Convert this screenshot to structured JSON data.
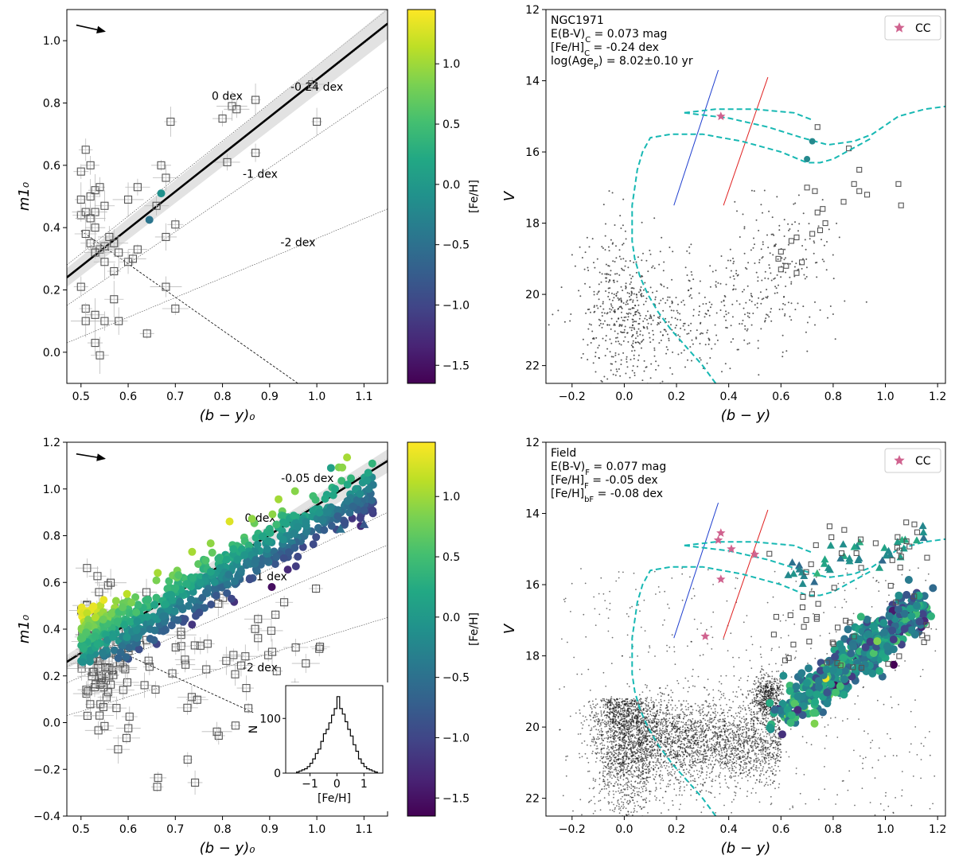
{
  "colors": {
    "iso": "#17b8b3",
    "cepheid": "#d0638f",
    "locus_blue": "#1f3fcf",
    "locus_red": "#e02020",
    "square": "#555555",
    "cmap": [
      "#440154",
      "#482475",
      "#414487",
      "#355f8d",
      "#2a788e",
      "#21918c",
      "#22a884",
      "#44bf70",
      "#7ad151",
      "#bddf26",
      "#fde725"
    ]
  },
  "icons": {
    "reddening": "arrow-icon"
  },
  "chart_data": [
    {
      "id": "tl",
      "type": "scatter",
      "xlabel": "(b − y)₀",
      "ylabel": "m1₀",
      "xlim": [
        0.47,
        1.15
      ],
      "ylim": [
        -0.1,
        1.1
      ],
      "xticks": [
        "0.5",
        "0.6",
        "0.7",
        "0.8",
        "0.9",
        "1.0",
        "1.1"
      ],
      "yticks": [
        "0.0",
        "0.2",
        "0.4",
        "0.6",
        "0.8",
        "1.0"
      ],
      "iso_lines": [
        {
          "label": "0 dex",
          "x": [
            0.47,
            1.15
          ],
          "y": [
            0.28,
            1.1
          ]
        },
        {
          "label": "-0.24 dex",
          "x": [
            0.47,
            1.15
          ],
          "y": [
            0.24,
            1.05
          ]
        },
        {
          "label": "-1 dex",
          "x": [
            0.47,
            1.15
          ],
          "y": [
            0.15,
            0.85
          ]
        },
        {
          "label": "-2 dex",
          "x": [
            0.47,
            1.15
          ],
          "y": [
            0.03,
            0.46
          ]
        }
      ],
      "fit_line": {
        "x": [
          0.47,
          1.15
        ],
        "y": [
          0.24,
          1.055
        ]
      },
      "cut_line": {
        "x": [
          0.5,
          0.96
        ],
        "y": [
          0.39,
          -0.1
        ]
      },
      "labels": [
        {
          "text": "0 dex",
          "x": 0.81,
          "y": 0.81
        },
        {
          "text": "-0.24 dex",
          "x": 1.0,
          "y": 0.84
        },
        {
          "text": "-1 dex",
          "x": 0.88,
          "y": 0.56
        },
        {
          "text": "-2 dex",
          "x": 0.96,
          "y": 0.34
        }
      ],
      "colored_points": [
        {
          "x": 0.67,
          "y": 0.51,
          "feh": -0.1
        },
        {
          "x": 0.645,
          "y": 0.425,
          "feh": -0.45
        }
      ],
      "squares": [
        [
          0.5,
          0.58
        ],
        [
          0.51,
          0.65
        ],
        [
          0.52,
          0.6
        ],
        [
          0.52,
          0.5
        ],
        [
          0.53,
          0.52
        ],
        [
          0.5,
          0.44
        ],
        [
          0.5,
          0.49
        ],
        [
          0.51,
          0.45
        ],
        [
          0.52,
          0.43
        ],
        [
          0.53,
          0.45
        ],
        [
          0.54,
          0.53
        ],
        [
          0.55,
          0.47
        ],
        [
          0.53,
          0.4
        ],
        [
          0.51,
          0.38
        ],
        [
          0.52,
          0.35
        ],
        [
          0.54,
          0.33
        ],
        [
          0.53,
          0.32
        ],
        [
          0.55,
          0.34
        ],
        [
          0.56,
          0.37
        ],
        [
          0.57,
          0.35
        ],
        [
          0.58,
          0.32
        ],
        [
          0.6,
          0.29
        ],
        [
          0.61,
          0.3
        ],
        [
          0.62,
          0.33
        ],
        [
          0.55,
          0.29
        ],
        [
          0.57,
          0.26
        ],
        [
          0.6,
          0.49
        ],
        [
          0.62,
          0.53
        ],
        [
          0.66,
          0.47
        ],
        [
          0.67,
          0.6
        ],
        [
          0.68,
          0.56
        ],
        [
          0.69,
          0.74
        ],
        [
          0.7,
          0.41
        ],
        [
          0.68,
          0.37
        ],
        [
          0.8,
          0.75
        ],
        [
          0.82,
          0.79
        ],
        [
          0.83,
          0.78
        ],
        [
          0.87,
          0.81
        ],
        [
          0.81,
          0.61
        ],
        [
          0.87,
          0.64
        ],
        [
          0.99,
          0.86
        ],
        [
          1.0,
          0.74
        ],
        [
          0.5,
          0.21
        ],
        [
          0.51,
          0.14
        ],
        [
          0.51,
          0.1
        ],
        [
          0.53,
          0.12
        ],
        [
          0.55,
          0.1
        ],
        [
          0.57,
          0.17
        ],
        [
          0.53,
          0.03
        ],
        [
          0.54,
          -0.01
        ],
        [
          0.58,
          0.1
        ],
        [
          0.64,
          0.06
        ],
        [
          0.68,
          0.21
        ],
        [
          0.7,
          0.14
        ]
      ],
      "arrow": {
        "x1": 0.49,
        "y1": 1.05,
        "x2": 0.55,
        "y2": 1.03
      },
      "text_block": []
    },
    {
      "id": "tr",
      "type": "scatter",
      "xlabel": "(b − y)",
      "ylabel": "V",
      "xlim": [
        -0.3,
        1.23
      ],
      "ylim": [
        22.5,
        12
      ],
      "xticks": [
        "−0.2",
        "0.0",
        "0.2",
        "0.4",
        "0.6",
        "0.8",
        "1.0",
        "1.2"
      ],
      "yticks": [
        "12",
        "14",
        "16",
        "18",
        "20",
        "22"
      ],
      "text_block": [
        "NGC1971",
        "E(B-V)_C = 0.073 mag",
        "[Fe/H]_C = -0.24 dex",
        "log(Age_P) = 8.02±0.10 yr"
      ],
      "legend": "CC",
      "cepheids": [
        [
          0.37,
          15.0
        ]
      ],
      "colored_points": [
        {
          "x": 0.72,
          "y": 15.7,
          "feh": -0.2
        },
        {
          "x": 0.7,
          "y": 16.2,
          "feh": -0.2
        }
      ],
      "squares": [
        [
          0.74,
          15.3
        ],
        [
          0.86,
          15.9
        ],
        [
          0.9,
          16.5
        ],
        [
          0.88,
          16.9
        ],
        [
          0.9,
          17.1
        ],
        [
          0.93,
          17.2
        ],
        [
          1.05,
          16.9
        ],
        [
          1.06,
          17.5
        ],
        [
          0.84,
          17.4
        ],
        [
          0.7,
          17.0
        ],
        [
          0.73,
          17.1
        ],
        [
          0.74,
          17.7
        ],
        [
          0.76,
          17.6
        ],
        [
          0.75,
          18.2
        ],
        [
          0.77,
          18.0
        ],
        [
          0.72,
          18.3
        ],
        [
          0.66,
          18.4
        ],
        [
          0.64,
          18.5
        ],
        [
          0.6,
          18.8
        ],
        [
          0.59,
          19.0
        ],
        [
          0.6,
          19.3
        ],
        [
          0.62,
          19.2
        ],
        [
          0.66,
          19.4
        ],
        [
          0.68,
          19.1
        ]
      ],
      "isochrone": [
        [
          0.35,
          22.5
        ],
        [
          0.3,
          22.0
        ],
        [
          0.24,
          21.5
        ],
        [
          0.18,
          21.0
        ],
        [
          0.13,
          20.5
        ],
        [
          0.09,
          20.0
        ],
        [
          0.06,
          19.5
        ],
        [
          0.04,
          19.0
        ],
        [
          0.03,
          18.5
        ],
        [
          0.03,
          18.0
        ],
        [
          0.03,
          17.5
        ],
        [
          0.04,
          17.0
        ],
        [
          0.05,
          16.5
        ],
        [
          0.07,
          16.0
        ],
        [
          0.1,
          15.6
        ],
        [
          0.18,
          15.5
        ],
        [
          0.3,
          15.5
        ],
        [
          0.45,
          15.7
        ],
        [
          0.6,
          16.0
        ],
        [
          0.7,
          16.3
        ],
        [
          0.75,
          16.3
        ],
        [
          0.8,
          16.2
        ],
        [
          0.85,
          16.0
        ],
        [
          0.9,
          15.8
        ],
        [
          0.95,
          15.6
        ]
      ],
      "isochrone2": [
        [
          0.23,
          14.9
        ],
        [
          0.4,
          15.05
        ],
        [
          0.55,
          15.3
        ],
        [
          0.68,
          15.6
        ],
        [
          0.78,
          15.8
        ],
        [
          0.88,
          15.7
        ],
        [
          0.95,
          15.5
        ],
        [
          1.05,
          15.0
        ],
        [
          1.15,
          14.8
        ],
        [
          1.25,
          14.7
        ]
      ],
      "iso_top": [
        [
          0.23,
          14.9
        ],
        [
          0.35,
          14.8
        ],
        [
          0.5,
          14.8
        ],
        [
          0.65,
          14.9
        ],
        [
          0.72,
          15.1
        ]
      ],
      "locus_blue": {
        "x": [
          0.19,
          0.36
        ],
        "y": [
          17.5,
          13.7
        ]
      },
      "locus_red": {
        "x": [
          0.38,
          0.55
        ],
        "y": [
          17.5,
          13.9
        ]
      },
      "dots": {
        "n": 900,
        "seed": 7,
        "regions": [
          [
            0.0,
            20.5,
            0.08,
            1.2,
            0.45
          ],
          [
            0.25,
            20.6,
            0.22,
            0.7,
            0.35
          ],
          [
            0.6,
            19.0,
            0.12,
            0.9,
            0.2
          ]
        ]
      }
    },
    {
      "id": "bl",
      "type": "scatter",
      "xlabel": "(b − y)₀",
      "ylabel": "m1₀",
      "xlim": [
        0.47,
        1.15
      ],
      "ylim": [
        -0.4,
        1.2
      ],
      "xticks": [
        "0.5",
        "0.6",
        "0.7",
        "0.8",
        "0.9",
        "1.0",
        "1.1"
      ],
      "yticks": [
        "−0.4",
        "−0.2",
        "0.0",
        "0.2",
        "0.4",
        "0.6",
        "0.8",
        "1.0",
        "1.2"
      ],
      "iso_lines": [
        {
          "label": "-0.05 dex",
          "x": [
            0.47,
            1.15
          ],
          "y": [
            0.27,
            1.13
          ]
        },
        {
          "label": "0 dex",
          "x": [
            0.47,
            1.15
          ],
          "y": [
            0.24,
            0.9
          ]
        },
        {
          "label": "-1 dex",
          "x": [
            0.47,
            1.15
          ],
          "y": [
            0.17,
            0.76
          ]
        },
        {
          "label": "-2 dex",
          "x": [
            0.47,
            1.15
          ],
          "y": [
            0.03,
            0.45
          ]
        }
      ],
      "fit_line": {
        "x": [
          0.47,
          1.15
        ],
        "y": [
          0.26,
          1.12
        ]
      },
      "cut_line": {
        "x": [
          0.5,
          1.15
        ],
        "y": [
          0.38,
          -0.22
        ]
      },
      "labels": [
        {
          "text": "-0.05 dex",
          "x": 0.98,
          "y": 1.03
        },
        {
          "text": "0 dex",
          "x": 0.88,
          "y": 0.86
        },
        {
          "text": "-1 dex",
          "x": 0.9,
          "y": 0.61
        },
        {
          "text": "-2 dex",
          "x": 0.88,
          "y": 0.22
        }
      ],
      "arrow": {
        "x1": 0.49,
        "y1": 1.15,
        "x2": 0.55,
        "y2": 1.13
      },
      "colored": {
        "n": 620,
        "seed": 11
      },
      "squares_n": 170,
      "text_block": []
    },
    {
      "id": "br",
      "type": "scatter",
      "xlabel": "(b − y)",
      "ylabel": "V",
      "xlim": [
        -0.3,
        1.23
      ],
      "ylim": [
        22.5,
        12
      ],
      "xticks": [
        "−0.2",
        "0.0",
        "0.2",
        "0.4",
        "0.6",
        "0.8",
        "1.0",
        "1.2"
      ],
      "yticks": [
        "12",
        "14",
        "16",
        "18",
        "20",
        "22"
      ],
      "text_block": [
        "Field",
        "E(B-V)_F = 0.077 mag",
        "[Fe/H]_F = -0.05 dex",
        "[Fe/H]_bF = -0.08 dex"
      ],
      "legend": "CC",
      "cepheids": [
        [
          0.37,
          14.55
        ],
        [
          0.36,
          14.75
        ],
        [
          0.41,
          15.0
        ],
        [
          0.5,
          15.15
        ],
        [
          0.37,
          15.85
        ],
        [
          0.31,
          17.45
        ]
      ],
      "locus_blue": {
        "x": [
          0.19,
          0.36
        ],
        "y": [
          17.5,
          13.7
        ]
      },
      "locus_red": {
        "x": [
          0.38,
          0.55
        ],
        "y": [
          17.5,
          13.9
        ]
      },
      "dots": {
        "n": 5200,
        "seed": 3
      },
      "colored": {
        "n": 520,
        "seed": 5
      }
    }
  ],
  "colorbars": [
    {
      "id": "cb1",
      "label": "[Fe/H]",
      "ticks": [
        "1.0",
        "0.5",
        "0.0",
        "−0.5",
        "−1.0",
        "−1.5"
      ],
      "range": [
        -1.65,
        1.45
      ]
    },
    {
      "id": "cb2",
      "label": "[Fe/H]",
      "ticks": [
        "1.0",
        "0.5",
        "0.0",
        "−0.5",
        "−1.0",
        "−1.5"
      ],
      "range": [
        -1.65,
        1.45
      ]
    }
  ],
  "inset": {
    "xlabel": "[Fe/H]",
    "ylabel": "N",
    "xticks": [
      "−1",
      "0",
      "1"
    ],
    "yticks": [
      "0",
      "100"
    ],
    "xlim": [
      -1.9,
      1.7
    ],
    "ylim": [
      0,
      160
    ],
    "bin_width": 0.1,
    "counts": [
      2,
      4,
      6,
      8,
      12,
      18,
      26,
      36,
      44,
      58,
      72,
      80,
      92,
      106,
      118,
      140,
      118,
      108,
      94,
      80,
      68,
      52,
      40,
      26,
      18,
      12,
      8,
      6,
      4,
      2
    ],
    "bins_start": -1.5
  }
}
